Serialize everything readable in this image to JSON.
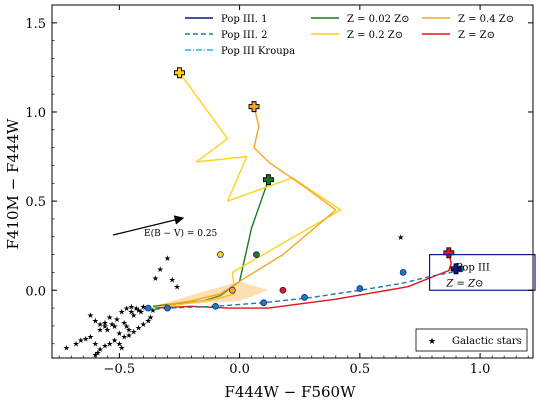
{
  "chart_data": {
    "type": "line",
    "xlabel": "F444W − F560W",
    "ylabel": "F410M − F444W",
    "xlim": [
      -0.78,
      1.22
    ],
    "ylim": [
      -0.38,
      1.6
    ],
    "xticks": [
      -0.5,
      0.0,
      0.5,
      1.0
    ],
    "xtick_labels": [
      "−0.5",
      "0.0",
      "0.5",
      "1.0"
    ],
    "yticks": [
      0.0,
      0.5,
      1.0,
      1.5
    ],
    "ytick_labels": [
      "0.0",
      "0.5",
      "1.0",
      "1.5"
    ],
    "legend": {
      "placement": "top",
      "columns": [
        [
          {
            "label": "Pop III. 1",
            "color": "#0b1a8c",
            "style": "solid"
          },
          {
            "label": "Pop III. 2",
            "color": "#1f77b4",
            "style": "dashed"
          },
          {
            "label": "Pop III Kroupa",
            "color": "#17becf",
            "style": "dashdot"
          }
        ],
        [
          {
            "label": "Z = 0.02 Z⊙",
            "color": "#1a7a1a",
            "style": "solid"
          },
          {
            "label": "Z = 0.2 Z⊙",
            "color": "#ffd21a",
            "style": "solid"
          }
        ],
        [
          {
            "label": "Z = 0.4 Z⊙",
            "color": "#f5a623",
            "style": "solid"
          },
          {
            "label": "Z = Z⊙",
            "color": "#e8131a",
            "style": "solid"
          }
        ]
      ]
    },
    "galactic_legend": {
      "label": "Galactic stars",
      "placement": "lower-right"
    },
    "reddening_vector": {
      "label": "E(B − V) = 0.25",
      "from": [
        -0.73,
        -0.38
      ],
      "to": [
        -0.53,
        -0.29
      ]
    },
    "box": {
      "x0": 0.79,
      "x1": 1.23,
      "y0": 0.0,
      "y1": 0.2,
      "color": "#0b1a8c",
      "label_blue": "Pop III",
      "label_red": "Z = Z⊙"
    },
    "series": [
      {
        "name": "Z = 0.02 Z⊙",
        "color": "#1a7a1a",
        "x": [
          0.12,
          0.05,
          0.0,
          -0.08,
          -0.15,
          -0.22,
          -0.3,
          -0.36
        ],
        "y": [
          0.62,
          0.35,
          0.05,
          -0.03,
          -0.06,
          -0.07,
          -0.08,
          -0.09
        ]
      },
      {
        "name": "Z = 0.2 Z⊙",
        "color": "#ffd21a",
        "x": [
          -0.25,
          -0.05,
          -0.18,
          0.03,
          -0.05,
          0.22,
          0.42,
          -0.03,
          -0.02,
          -0.1,
          -0.25,
          -0.36
        ],
        "y": [
          1.22,
          0.85,
          0.72,
          0.75,
          0.5,
          0.63,
          0.45,
          0.1,
          -0.02,
          -0.05,
          -0.08,
          -0.1
        ]
      },
      {
        "name": "Z = 0.4 Z⊙",
        "color": "#f5a623",
        "x": [
          0.06,
          0.08,
          0.06,
          0.12,
          0.27,
          0.4,
          0.18,
          0.0,
          -0.08,
          -0.2,
          -0.3
        ],
        "y": [
          1.03,
          0.92,
          0.8,
          0.72,
          0.58,
          0.45,
          0.2,
          0.05,
          -0.02,
          -0.06,
          -0.08
        ]
      },
      {
        "name": "Z = Z⊙",
        "color": "#e8131a",
        "x": [
          0.87,
          0.88,
          0.87,
          0.85,
          0.7,
          0.4,
          0.12,
          -0.05,
          -0.2,
          -0.35
        ],
        "y": [
          0.21,
          0.15,
          0.11,
          0.1,
          0.02,
          -0.05,
          -0.1,
          -0.1,
          -0.09,
          -0.1
        ]
      },
      {
        "name": "Pop III. 1",
        "color": "#0b1a8c",
        "x": [
          0.91,
          0.9,
          0.88
        ],
        "y": [
          0.13,
          0.11,
          0.12
        ]
      },
      {
        "name": "Pop III. 2",
        "color": "#1f77b4",
        "x": [
          0.92,
          0.88,
          0.8,
          0.68,
          0.5,
          0.3,
          0.1,
          -0.1,
          -0.3,
          -0.4
        ],
        "y": [
          0.12,
          0.1,
          0.08,
          0.04,
          0.0,
          -0.04,
          -0.07,
          -0.09,
          -0.1,
          -0.11
        ]
      }
    ],
    "markers": {
      "plus": [
        {
          "x": -0.25,
          "y": 1.22,
          "color": "#ffd21a"
        },
        {
          "x": 0.06,
          "y": 1.03,
          "color": "#f5a623"
        },
        {
          "x": 0.12,
          "y": 0.62,
          "color": "#1a7a1a"
        },
        {
          "x": 0.87,
          "y": 0.21,
          "color": "#e8131a"
        },
        {
          "x": 0.9,
          "y": 0.12,
          "color": "#0b1a8c"
        }
      ],
      "dots": [
        {
          "x": 0.07,
          "y": 0.2,
          "color": "#1a7a1a"
        },
        {
          "x": -0.08,
          "y": 0.2,
          "color": "#ffd21a"
        },
        {
          "x": -0.03,
          "y": 0.0,
          "color": "#f5a623"
        },
        {
          "x": 0.18,
          "y": 0.0,
          "color": "#e8131a"
        },
        {
          "x": 0.68,
          "y": 0.1,
          "color": "#1f77b4"
        },
        {
          "x": 0.5,
          "y": 0.01,
          "color": "#1f77b4"
        },
        {
          "x": 0.27,
          "y": -0.04,
          "color": "#1f77b4"
        },
        {
          "x": 0.1,
          "y": -0.07,
          "color": "#1f77b4"
        },
        {
          "x": -0.1,
          "y": -0.09,
          "color": "#1f77b4"
        },
        {
          "x": -0.3,
          "y": -0.1,
          "color": "#1f77b4"
        },
        {
          "x": -0.38,
          "y": -0.1,
          "color": "#1f77b4"
        },
        {
          "x": 0.92,
          "y": 0.12,
          "color": "#1f77b4"
        }
      ]
    },
    "galactic_stars": {
      "x": [
        -0.72,
        -0.68,
        -0.66,
        -0.64,
        -0.62,
        -0.6,
        -0.59,
        -0.58,
        -0.56,
        -0.54,
        -0.52,
        -0.5,
        -0.48,
        -0.47,
        -0.46,
        -0.45,
        -0.44,
        -0.43,
        -0.42,
        -0.41,
        -0.4,
        -0.38,
        -0.36,
        -0.62,
        -0.6,
        -0.58,
        -0.56,
        -0.55,
        -0.53,
        -0.51,
        -0.49,
        -0.47,
        -0.45,
        -0.6,
        -0.58,
        -0.56,
        -0.54,
        -0.52,
        -0.5,
        -0.49,
        -0.48,
        -0.46,
        -0.44,
        -0.42,
        -0.4,
        -0.38,
        -0.37,
        -0.33,
        -0.3,
        -0.28,
        -0.26,
        -0.35,
        0.67
      ],
      "y": [
        -0.32,
        -0.3,
        -0.28,
        -0.27,
        -0.26,
        -0.3,
        -0.35,
        -0.22,
        -0.18,
        -0.15,
        -0.2,
        -0.24,
        -0.18,
        -0.2,
        -0.22,
        -0.12,
        -0.14,
        -0.1,
        -0.11,
        -0.12,
        -0.09,
        -0.1,
        -0.11,
        -0.14,
        -0.17,
        -0.19,
        -0.2,
        -0.22,
        -0.19,
        -0.16,
        -0.12,
        -0.1,
        -0.09,
        -0.36,
        -0.33,
        -0.31,
        -0.3,
        -0.28,
        -0.3,
        -0.32,
        -0.26,
        -0.25,
        -0.23,
        -0.21,
        -0.19,
        -0.17,
        -0.15,
        0.12,
        0.18,
        0.06,
        0.02,
        0.07,
        0.3
      ]
    }
  }
}
